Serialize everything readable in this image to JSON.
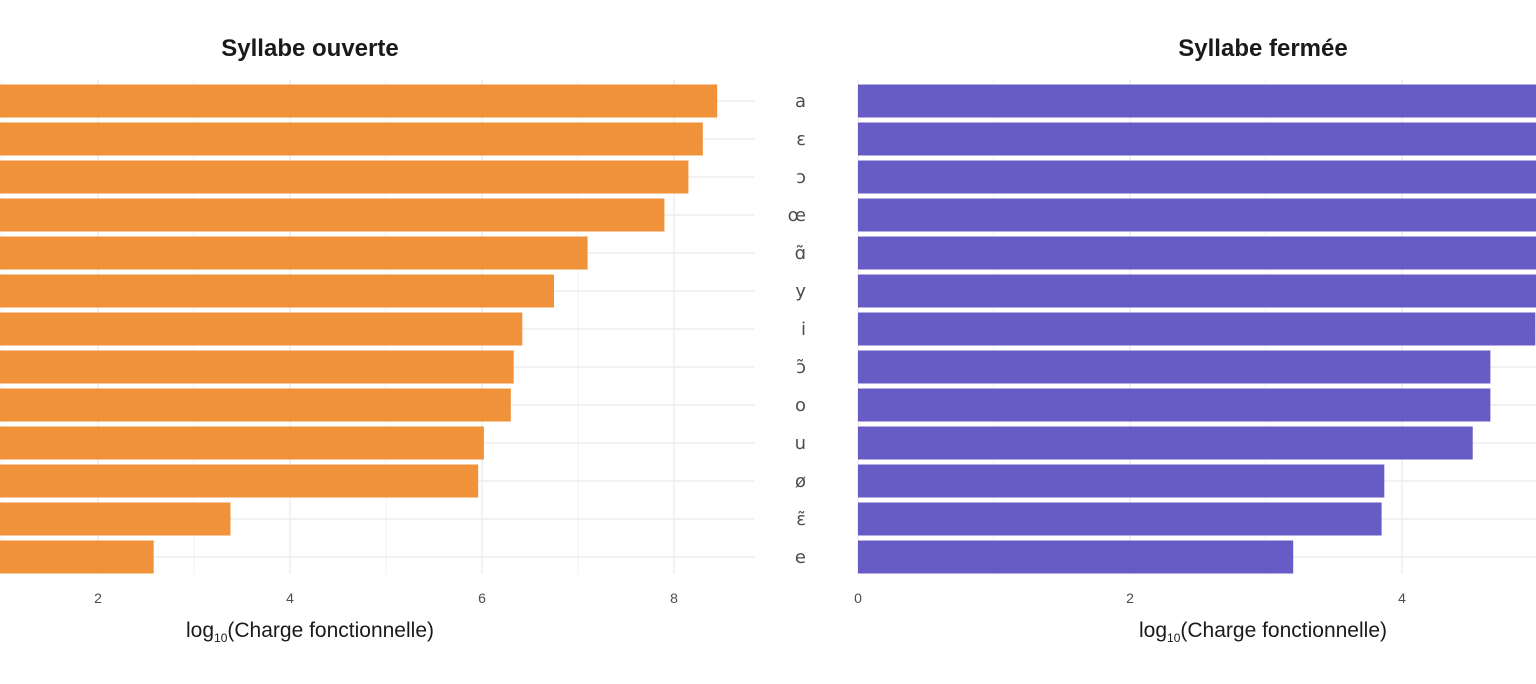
{
  "chart_data": [
    {
      "type": "bar",
      "orientation": "horizontal",
      "title": "Syllabe ouverte",
      "xlabel": "log10(Charge fonctionnelle)",
      "xlabel_main": "log",
      "xlabel_sub": "10",
      "xlabel_rest": "(Charge fonctionnelle)",
      "color": "#F0923A",
      "grid": true,
      "xlim": [
        -0.1,
        8.8
      ],
      "xticks": [
        2,
        4,
        6,
        8
      ],
      "values": [
        8.45,
        8.3,
        8.15,
        7.9,
        7.1,
        6.75,
        6.42,
        6.33,
        6.3,
        6.02,
        5.96,
        3.38,
        2.58
      ]
    },
    {
      "type": "bar",
      "orientation": "horizontal",
      "title": "Syllabe fermée",
      "xlabel": "log10(Charge fonctionnelle)",
      "xlabel_main": "log",
      "xlabel_sub": "10",
      "xlabel_rest": "(Charge fonctionnelle)",
      "color": "#675CC6",
      "grid": true,
      "xlim": [
        0,
        5.0
      ],
      "xticks": [
        0,
        2,
        4
      ],
      "categories": [
        "a",
        "ɛ",
        "ɔ",
        "œ",
        "ɑ̃",
        "y",
        "i",
        "ɔ̃",
        "o",
        "u",
        "ø",
        "ɛ̃",
        "e"
      ],
      "values": [
        5.3,
        5.3,
        5.3,
        5.3,
        5.3,
        5.3,
        4.98,
        4.65,
        4.65,
        4.52,
        3.87,
        3.85,
        3.2
      ]
    }
  ]
}
